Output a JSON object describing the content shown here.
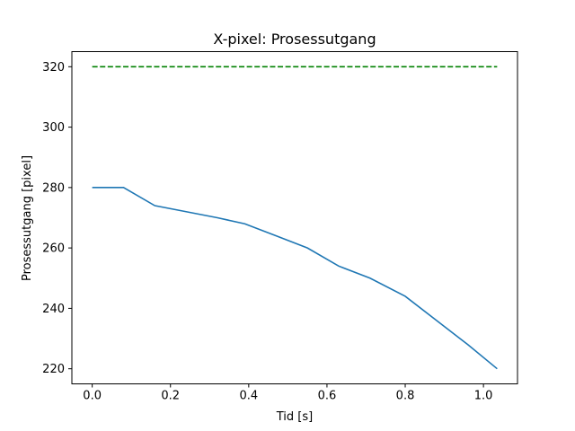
{
  "chart_data": {
    "type": "line",
    "title": "X-pixel: Prosessutgang",
    "xlabel": "Tid [s]",
    "ylabel": "Prosessutgang [pixel]",
    "xlim": [
      -0.052,
      1.087
    ],
    "ylim": [
      215,
      325
    ],
    "xticks": [
      0.0,
      0.2,
      0.4,
      0.6,
      0.8,
      1.0
    ],
    "xtick_labels": [
      "0.0",
      "0.2",
      "0.4",
      "0.6",
      "0.8",
      "1.0"
    ],
    "yticks": [
      220,
      240,
      260,
      280,
      300,
      320
    ],
    "ytick_labels": [
      "220",
      "240",
      "260",
      "280",
      "300",
      "320"
    ],
    "grid": false,
    "series": [
      {
        "color": "#1f77b4",
        "style": "solid",
        "x": [
          0.0,
          0.08,
          0.16,
          0.24,
          0.32,
          0.39,
          0.47,
          0.55,
          0.63,
          0.71,
          0.8,
          0.88,
          0.96,
          1.035
        ],
        "y": [
          280,
          280,
          274,
          272,
          270,
          268,
          264,
          260,
          254,
          250,
          244,
          236,
          228,
          220
        ]
      },
      {
        "color": "#008000",
        "style": "dashed",
        "x": [
          0.0,
          1.035
        ],
        "y": [
          320,
          320
        ]
      }
    ]
  }
}
